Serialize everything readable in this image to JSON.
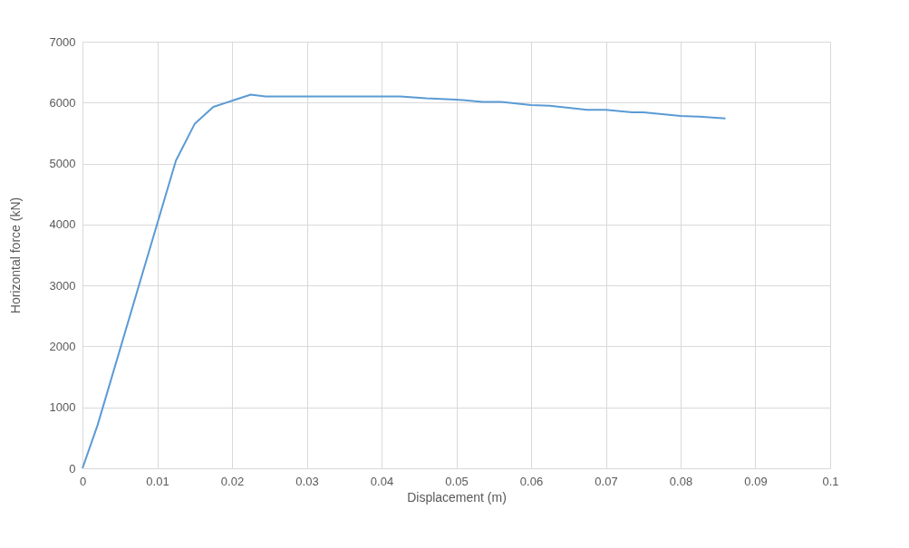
{
  "chart_data": {
    "type": "line",
    "xlabel": "Displacement (m)",
    "ylabel": "Horizontal force (kN)",
    "xlim": [
      0,
      0.1
    ],
    "xticks": [
      0,
      0.01,
      0.02,
      0.03,
      0.04,
      0.05,
      0.06,
      0.07,
      0.08,
      0.09,
      0.1
    ],
    "ylim": [
      0,
      7000
    ],
    "yticks": [
      0,
      1000,
      2000,
      3000,
      4000,
      5000,
      6000,
      7000
    ],
    "grid": true,
    "legend": false,
    "series": [
      {
        "color": "#5b9bd5",
        "x": [
          0,
          0.002,
          0.0125,
          0.015,
          0.0175,
          0.0225,
          0.0245,
          0.0425,
          0.046,
          0.05,
          0.0535,
          0.056,
          0.06,
          0.0625,
          0.0675,
          0.07,
          0.0735,
          0.075,
          0.08,
          0.0825,
          0.086
        ],
        "values": [
          0,
          700,
          5050,
          5650,
          5930,
          6130,
          6100,
          6100,
          6070,
          6050,
          6010,
          6010,
          5960,
          5950,
          5880,
          5880,
          5840,
          5840,
          5780,
          5770,
          5740
        ]
      }
    ]
  }
}
